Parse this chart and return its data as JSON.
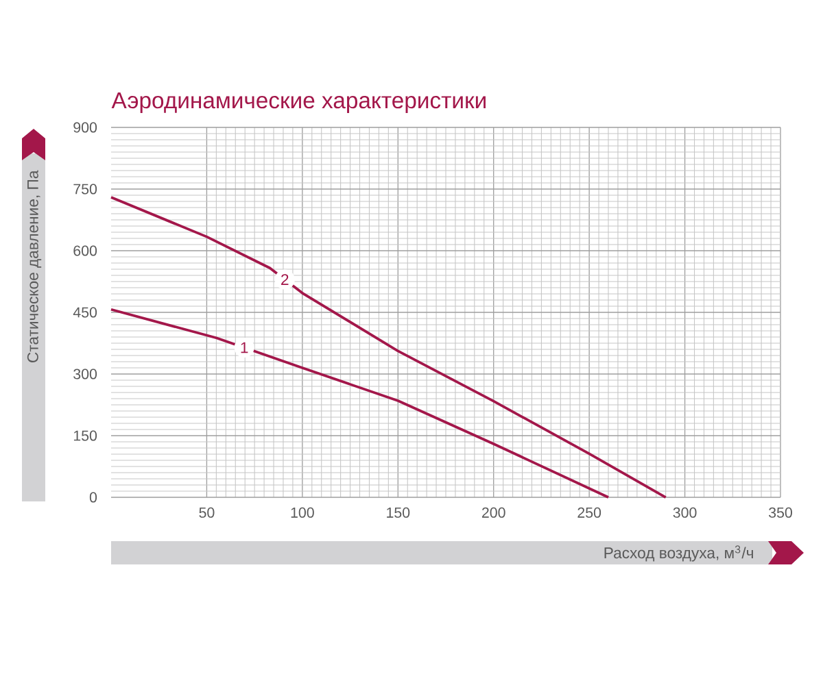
{
  "chart_data": {
    "type": "line",
    "title": "Аэродинамические характеристики",
    "xlabel": "Расход воздуха, м$^{3}$/ч",
    "ylabel": "Статическое давление, Па",
    "xlim": [
      0,
      350
    ],
    "xticks": [
      50,
      100,
      150,
      200,
      250,
      300,
      350
    ],
    "ylim": [
      0,
      900
    ],
    "yticks": [
      0,
      150,
      300,
      450,
      600,
      750,
      900
    ],
    "grid": true,
    "series": [
      {
        "name": "1",
        "color": "#a3174a",
        "x": [
          0,
          55,
          100,
          150,
          200,
          260
        ],
        "values": [
          457,
          388,
          315,
          235,
          130,
          0
        ]
      },
      {
        "name": "2",
        "color": "#a3174a",
        "x": [
          0,
          50,
          83,
          100,
          150,
          200,
          250,
          290
        ],
        "values": [
          730,
          634,
          558,
          497,
          356,
          234,
          106,
          0
        ]
      }
    ]
  }
}
